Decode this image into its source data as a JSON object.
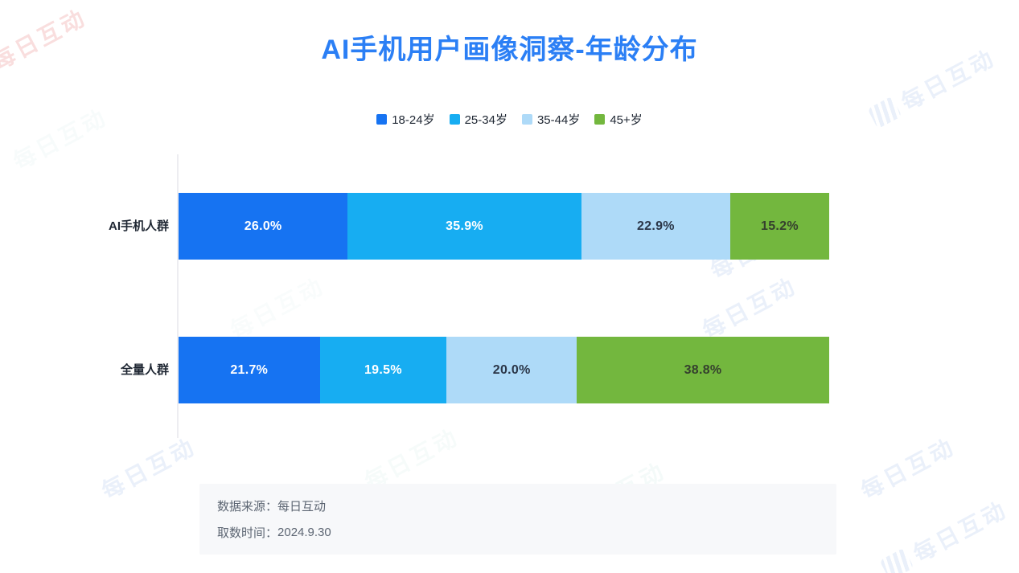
{
  "page": {
    "title": "AI手机用户画像洞察-年龄分布",
    "title_color": "#2B7FF5",
    "background": "#ffffff"
  },
  "chart_data": {
    "type": "bar",
    "variant": "horizontal-stacked",
    "unit": "%",
    "title": "AI手机用户画像洞察-年龄分布",
    "categories": [
      "AI手机人群",
      "全量人群"
    ],
    "series": [
      {
        "name": "18-24岁",
        "color": "#1673F2",
        "label_color": "#ffffff",
        "values": [
          26.0,
          21.7
        ]
      },
      {
        "name": "25-34岁",
        "color": "#17ADF2",
        "label_color": "#ffffff",
        "values": [
          35.9,
          19.5
        ]
      },
      {
        "name": "35-44岁",
        "color": "#AEDAF8",
        "label_color": "#2b3648",
        "values": [
          22.9,
          20.0
        ]
      },
      {
        "name": "45+岁",
        "color": "#73B73E",
        "label_color": "#35402e",
        "values": [
          15.2,
          38.8
        ]
      }
    ],
    "xlim": [
      0,
      100
    ],
    "grid": false,
    "legend_position": "top",
    "value_labels": "inside"
  },
  "footer": {
    "source_label": "数据来源：",
    "source_value": "每日互动",
    "date_label": "取数时间：",
    "date_value": "2024.9.30"
  },
  "watermark": {
    "text": "每日互动"
  }
}
